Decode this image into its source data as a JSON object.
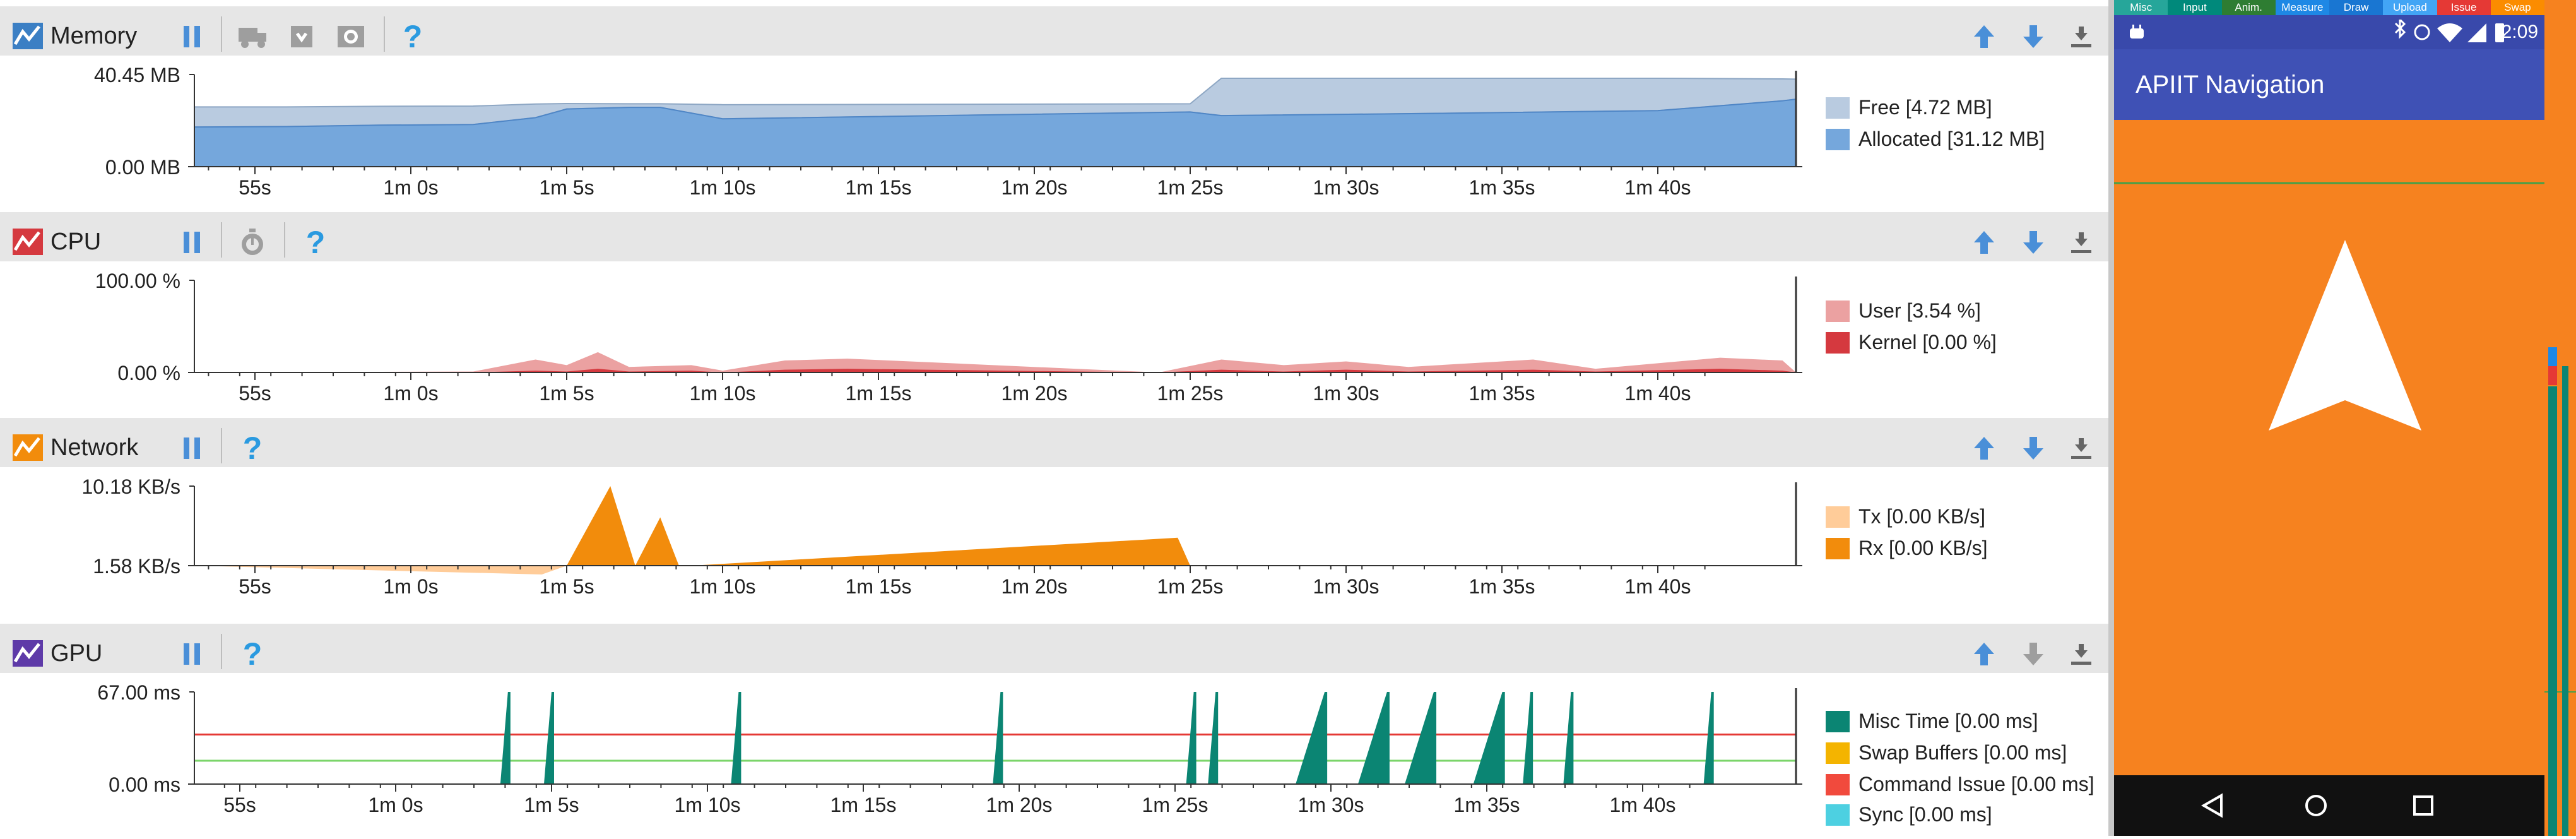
{
  "memory": {
    "title": "Memory",
    "y_max": "40.45 MB",
    "y_min": "0.00 MB",
    "legend": [
      {
        "label": "Free [4.72 MB]",
        "color": "#b9cbe0"
      },
      {
        "label": "Allocated [31.12 MB]",
        "color": "#75a7dc"
      }
    ]
  },
  "cpu": {
    "title": "CPU",
    "y_max": "100.00 %",
    "y_min": "0.00 %",
    "legend": [
      {
        "label": "User [3.54 %]",
        "color": "#eba1a1"
      },
      {
        "label": "Kernel [0.00 %]",
        "color": "#d5393f"
      }
    ]
  },
  "network": {
    "title": "Network",
    "y_max": "10.18 KB/s",
    "y_min": "1.58 KB/s",
    "legend": [
      {
        "label": "Tx [0.00 KB/s]",
        "color": "#ffcc99"
      },
      {
        "label": "Rx [0.00 KB/s]",
        "color": "#f28c0c"
      }
    ]
  },
  "gpu": {
    "title": "GPU",
    "y_max": "67.00 ms",
    "y_min": "0.00 ms",
    "legend": [
      {
        "label": "Misc Time [0.00 ms]",
        "color": "#0b8573"
      },
      {
        "label": "Swap Buffers [0.00 ms]",
        "color": "#f4b400"
      },
      {
        "label": "Command Issue [0.00 ms]",
        "color": "#f14a3d"
      },
      {
        "label": "Sync [0.00 ms]",
        "color": "#4dd0e1"
      }
    ]
  },
  "time_ticks": [
    "55s",
    "1m 0s",
    "1m 5s",
    "1m 10s",
    "1m 15s",
    "1m 20s",
    "1m 25s",
    "1m 30s",
    "1m 35s",
    "1m 40s"
  ],
  "device": {
    "app_title": "APIIT Navigation",
    "clock": "2:09",
    "profile_bar": [
      {
        "label": "Misc",
        "color": "#26a69a"
      },
      {
        "label": "Input",
        "color": "#00897b"
      },
      {
        "label": "Anim.",
        "color": "#2e7d32"
      },
      {
        "label": "Measure",
        "color": "#1e88e5"
      },
      {
        "label": "Draw",
        "color": "#1976d2"
      },
      {
        "label": "Upload",
        "color": "#42a5f5"
      },
      {
        "label": "Issue",
        "color": "#e53935"
      },
      {
        "label": "Swap",
        "color": "#fb8c00"
      }
    ],
    "colors": {
      "toolbar": "#3f51b5",
      "status": "#3949ab",
      "content": "#f6821f",
      "navbar": "#111111",
      "arrow": "#ffffff"
    }
  },
  "chart_data": [
    {
      "type": "area",
      "title": "Memory",
      "ylabel": "MB",
      "ylim": [
        0,
        40.45
      ],
      "x": [
        "53s",
        "56s",
        "59s",
        "62s",
        "64s",
        "65s",
        "67s",
        "68s",
        "70s",
        "78s",
        "85s",
        "86s",
        "93s",
        "100s",
        "104s",
        "106s"
      ],
      "series": [
        {
          "name": "Allocated [31.12 MB]",
          "values": [
            17.4,
            17.6,
            18.2,
            18.5,
            21.5,
            25.3,
            26.0,
            26.0,
            21.0,
            22.6,
            24.0,
            22.4,
            23.4,
            24.6,
            28.9,
            29.6
          ]
        },
        {
          "name": "Free [4.72 MB]",
          "values": [
            8.8,
            8.6,
            8.3,
            8.1,
            6.0,
            2.4,
            1.6,
            1.6,
            6.2,
            4.8,
            3.6,
            16.4,
            15.4,
            14.2,
            9.6,
            8.8
          ]
        }
      ]
    },
    {
      "type": "area",
      "title": "CPU",
      "ylabel": "%",
      "ylim": [
        0,
        100
      ],
      "x": [
        "53s",
        "62s",
        "64s",
        "65s",
        "66s",
        "67s",
        "69s",
        "70s",
        "72s",
        "74s",
        "84s",
        "86s",
        "88s",
        "90s",
        "92s",
        "96s",
        "98s",
        "102s",
        "104s",
        "106s"
      ],
      "series": [
        {
          "name": "User [3.54 %]",
          "values": [
            0,
            1,
            14,
            8,
            22,
            6,
            8,
            2,
            13,
            15,
            0,
            14,
            8,
            12,
            6,
            14,
            4,
            16,
            13,
            0
          ]
        },
        {
          "name": "Kernel [0.00 %]",
          "values": [
            0,
            0,
            2,
            1,
            4,
            1,
            2,
            0,
            3,
            4,
            0,
            3,
            1,
            3,
            1,
            3,
            1,
            4,
            2,
            0
          ]
        }
      ]
    },
    {
      "type": "area",
      "title": "Network",
      "ylabel": "KB/s",
      "ylim": [
        1.58,
        10.18
      ],
      "x": [
        "53s",
        "64.2s",
        "65s",
        "66.4s",
        "67.2s",
        "68s",
        "68.6s",
        "69s",
        "84.6s",
        "85s"
      ],
      "series": [
        {
          "name": "Tx [0.00 KB/s]",
          "values": [
            0,
            1.3,
            0,
            0,
            0,
            0,
            0,
            0,
            0,
            0
          ]
        },
        {
          "name": "Rx [0.00 KB/s]",
          "values": [
            1.58,
            1.58,
            1.58,
            10.18,
            1.58,
            6.8,
            1.58,
            1.58,
            4.6,
            1.58
          ]
        }
      ]
    },
    {
      "type": "bar",
      "title": "GPU",
      "ylabel": "ms",
      "ylim": [
        0,
        67
      ],
      "x": [
        "63.6s",
        "65s",
        "71s",
        "79.4s",
        "85.6s",
        "86.3s",
        "89.8s",
        "91.8s",
        "93.3s",
        "95.5s",
        "96.4s",
        "97.7s",
        "102.2s"
      ],
      "series": [
        {
          "name": "Misc Time [0.00 ms]",
          "values": [
            67,
            67,
            67,
            67,
            67,
            67,
            67,
            67,
            67,
            67,
            67,
            67,
            67
          ]
        }
      ],
      "reference_lines": [
        {
          "color": "#e53935",
          "value": 36
        },
        {
          "color": "#7bd56a",
          "value": 17
        }
      ]
    }
  ]
}
